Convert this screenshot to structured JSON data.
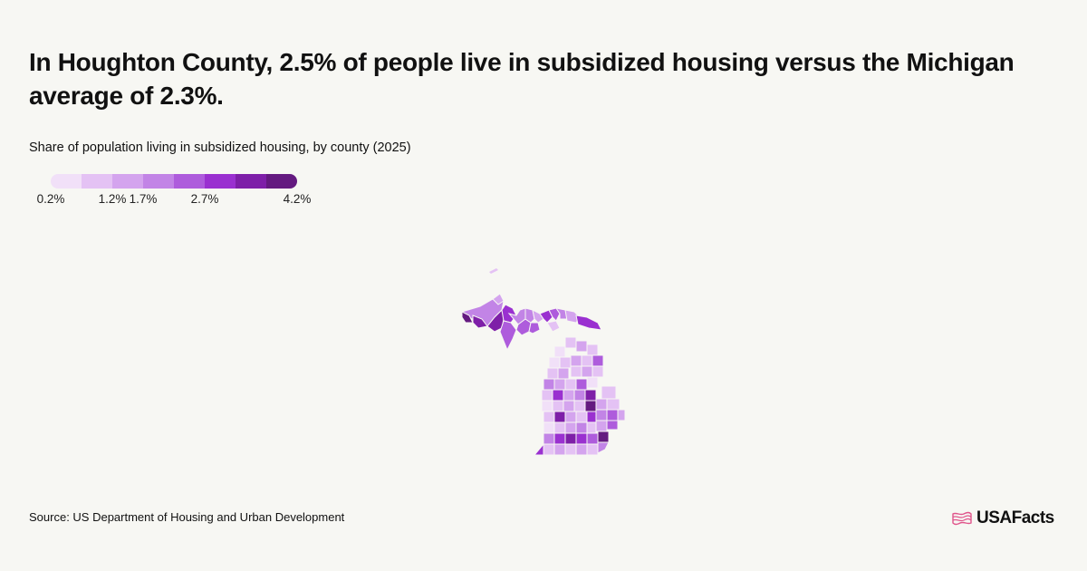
{
  "header": {
    "title": "In Houghton County, 2.5% of people live in subsidized housing versus the Michigan average of 2.3%.",
    "subtitle": "Share of population living in subsidized housing, by county (2025)"
  },
  "legend": {
    "colors": [
      "#f1e0f8",
      "#e4c2f4",
      "#d4a4ee",
      "#c284e6",
      "#ae5cdc",
      "#9a30d0",
      "#7e1fa8",
      "#641a80"
    ],
    "ticks": [
      {
        "label": "0.2%",
        "value": 0.2
      },
      {
        "label": "1.2%",
        "value": 1.2
      },
      {
        "label": "1.7%",
        "value": 1.7
      },
      {
        "label": "2.7%",
        "value": 2.7
      },
      {
        "label": "4.2%",
        "value": 4.2
      }
    ]
  },
  "map": {
    "region": "Michigan",
    "type": "choropleth by county"
  },
  "footer": {
    "source": "Source: US Department of Housing and Urban Development",
    "brand": "USAFacts",
    "brand_color": "#e0558b"
  }
}
